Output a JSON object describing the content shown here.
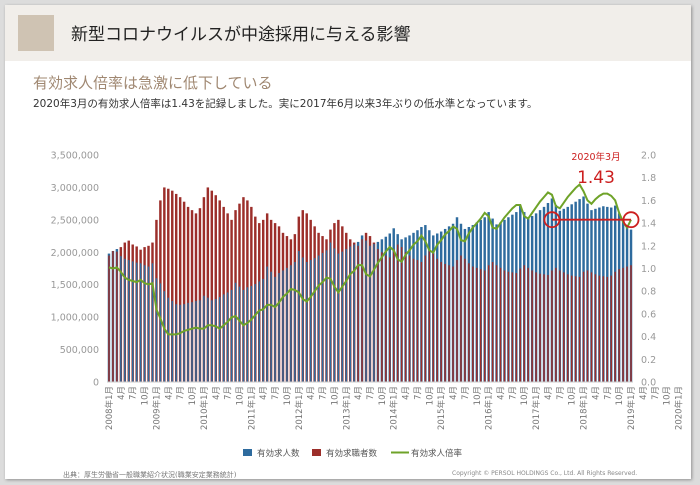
{
  "header": {
    "title": "新型コロナウイルスが中途採用に与える影響"
  },
  "subtitle": "有効求人倍率は急激に低下している",
  "description": "2020年3月の有効求人倍率は1.43を記録しました。実に2017年6月以来3年ぶりの低水準となっています。",
  "footer": {
    "source": "出典：厚生労働省一般職業紹介状況(職業安定業務統計)",
    "copyright": "Copyright © PERSOL HOLDINGS Co., Ltd. All Rights Reserved."
  },
  "colors": {
    "openings_bar": "#2e6b9e",
    "seekers_bar": "#9c2e2a",
    "ratio_line": "#6fa329",
    "highlight": "#cc1f1f"
  },
  "chart_data": {
    "type": "bar",
    "start": "2008-01",
    "x_tick_labels": [
      "2008年1月",
      "4月",
      "7月",
      "10月",
      "2009年1月",
      "4月",
      "7月",
      "10月",
      "2010年1月",
      "4月",
      "7月",
      "10月",
      "2011年1月",
      "4月",
      "7月",
      "10月",
      "2012年1月",
      "4月",
      "7月",
      "10月",
      "2013年1月",
      "4月",
      "7月",
      "10月",
      "2014年1月",
      "4月",
      "7月",
      "10月",
      "2015年1月",
      "4月",
      "7月",
      "10月",
      "2016年1月",
      "4月",
      "7月",
      "10月",
      "2017年1月",
      "4月",
      "7月",
      "10月",
      "2018年1月",
      "4月",
      "7月",
      "10月",
      "2019年1月",
      "4月",
      "7月",
      "10月",
      "2020年1月"
    ],
    "y_left": {
      "ticks": [
        "0",
        "500,000",
        "1,000,000",
        "1,500,000",
        "2,000,000",
        "2,500,000",
        "3,000,000",
        "3,500,000"
      ],
      "ylim": [
        0,
        3500000
      ]
    },
    "y_right": {
      "ticks": [
        "0.0",
        "0.2",
        "0.4",
        "0.6",
        "0.8",
        "1.0",
        "1.2",
        "1.4",
        "1.6",
        "1.8",
        "2.0"
      ],
      "ylim": [
        0,
        2.0
      ]
    },
    "legend": {
      "position": "bottom",
      "labels": [
        "有効求人数",
        "有効求職者数",
        "有効求人倍率"
      ]
    },
    "annotation": {
      "label": "2020年3月",
      "value": "1.43"
    },
    "series": [
      {
        "name": "有効求人数",
        "kind": "bar",
        "values": [
          1980000,
          2020000,
          2050000,
          1940000,
          1900000,
          1880000,
          1860000,
          1840000,
          1830000,
          1800000,
          1780000,
          1830000,
          1600000,
          1520000,
          1400000,
          1300000,
          1250000,
          1200000,
          1190000,
          1200000,
          1220000,
          1230000,
          1250000,
          1260000,
          1330000,
          1300000,
          1260000,
          1280000,
          1310000,
          1350000,
          1380000,
          1420000,
          1530000,
          1470000,
          1420000,
          1460000,
          1480000,
          1510000,
          1550000,
          1590000,
          1780000,
          1700000,
          1620000,
          1680000,
          1720000,
          1760000,
          1800000,
          1850000,
          2020000,
          1920000,
          1850000,
          1880000,
          1910000,
          1950000,
          1990000,
          2030000,
          2150000,
          2060000,
          1980000,
          2010000,
          2050000,
          2090000,
          2120000,
          2160000,
          2260000,
          2180000,
          2100000,
          2130000,
          2160000,
          2200000,
          2240000,
          2290000,
          2370000,
          2280000,
          2200000,
          2230000,
          2260000,
          2300000,
          2340000,
          2390000,
          2420000,
          2340000,
          2260000,
          2290000,
          2320000,
          2360000,
          2400000,
          2440000,
          2540000,
          2440000,
          2360000,
          2390000,
          2420000,
          2460000,
          2500000,
          2540000,
          2620000,
          2520000,
          2430000,
          2460000,
          2500000,
          2540000,
          2580000,
          2620000,
          2730000,
          2620000,
          2530000,
          2560000,
          2600000,
          2650000,
          2700000,
          2760000,
          2830000,
          2730000,
          2640000,
          2670000,
          2700000,
          2740000,
          2780000,
          2820000,
          2860000,
          2750000,
          2650000,
          2670000,
          2690000,
          2710000,
          2700000,
          2690000,
          2720000,
          2600000,
          2480000,
          2420000,
          2350000
        ]
      },
      {
        "name": "有効求職者数",
        "kind": "bar",
        "values": [
          1950000,
          2020000,
          2010000,
          2080000,
          2150000,
          2180000,
          2120000,
          2090000,
          2040000,
          2080000,
          2100000,
          2150000,
          2500000,
          2800000,
          3000000,
          2980000,
          2950000,
          2900000,
          2850000,
          2780000,
          2700000,
          2650000,
          2600000,
          2680000,
          2850000,
          3000000,
          2950000,
          2880000,
          2800000,
          2700000,
          2600000,
          2500000,
          2650000,
          2750000,
          2850000,
          2800000,
          2700000,
          2550000,
          2450000,
          2500000,
          2600000,
          2500000,
          2450000,
          2400000,
          2300000,
          2250000,
          2200000,
          2280000,
          2550000,
          2650000,
          2600000,
          2500000,
          2400000,
          2300000,
          2250000,
          2200000,
          2350000,
          2450000,
          2500000,
          2400000,
          2300000,
          2200000,
          2150000,
          2100000,
          2200000,
          2300000,
          2250000,
          2150000,
          2050000,
          2000000,
          1950000,
          1920000,
          2050000,
          2120000,
          2080000,
          2000000,
          1950000,
          1900000,
          1880000,
          1850000,
          1950000,
          2020000,
          1980000,
          1900000,
          1850000,
          1820000,
          1800000,
          1780000,
          1880000,
          1950000,
          1900000,
          1830000,
          1780000,
          1760000,
          1740000,
          1720000,
          1800000,
          1850000,
          1800000,
          1760000,
          1720000,
          1700000,
          1690000,
          1680000,
          1750000,
          1800000,
          1760000,
          1720000,
          1690000,
          1670000,
          1660000,
          1650000,
          1720000,
          1760000,
          1720000,
          1690000,
          1660000,
          1640000,
          1630000,
          1620000,
          1700000,
          1720000,
          1690000,
          1660000,
          1640000,
          1630000,
          1620000,
          1640000,
          1700000,
          1740000,
          1760000,
          1780000,
          1800000
        ]
      },
      {
        "name": "有効求人倍率",
        "kind": "line",
        "axis": "right",
        "values": [
          1.01,
          1.0,
          1.01,
          0.97,
          0.92,
          0.9,
          0.89,
          0.88,
          0.9,
          0.87,
          0.86,
          0.87,
          0.64,
          0.56,
          0.47,
          0.42,
          0.42,
          0.42,
          0.43,
          0.45,
          0.46,
          0.47,
          0.48,
          0.47,
          0.47,
          0.5,
          0.5,
          0.49,
          0.47,
          0.5,
          0.53,
          0.57,
          0.58,
          0.54,
          0.5,
          0.52,
          0.55,
          0.59,
          0.63,
          0.64,
          0.68,
          0.68,
          0.66,
          0.7,
          0.75,
          0.78,
          0.82,
          0.81,
          0.79,
          0.73,
          0.71,
          0.75,
          0.8,
          0.85,
          0.88,
          0.92,
          0.91,
          0.84,
          0.79,
          0.84,
          0.89,
          0.95,
          0.98,
          1.03,
          1.03,
          0.95,
          0.93,
          0.99,
          1.05,
          1.1,
          1.15,
          1.19,
          1.16,
          1.08,
          1.06,
          1.12,
          1.16,
          1.21,
          1.24,
          1.29,
          1.24,
          1.16,
          1.14,
          1.21,
          1.25,
          1.3,
          1.33,
          1.37,
          1.35,
          1.25,
          1.24,
          1.31,
          1.36,
          1.4,
          1.44,
          1.49,
          1.46,
          1.36,
          1.35,
          1.4,
          1.45,
          1.49,
          1.53,
          1.56,
          1.56,
          1.46,
          1.44,
          1.49,
          1.54,
          1.59,
          1.63,
          1.67,
          1.65,
          1.55,
          1.53,
          1.58,
          1.63,
          1.67,
          1.71,
          1.74,
          1.68,
          1.6,
          1.57,
          1.61,
          1.64,
          1.66,
          1.66,
          1.64,
          1.6,
          1.49,
          1.41,
          1.36,
          1.43
        ]
      }
    ]
  }
}
